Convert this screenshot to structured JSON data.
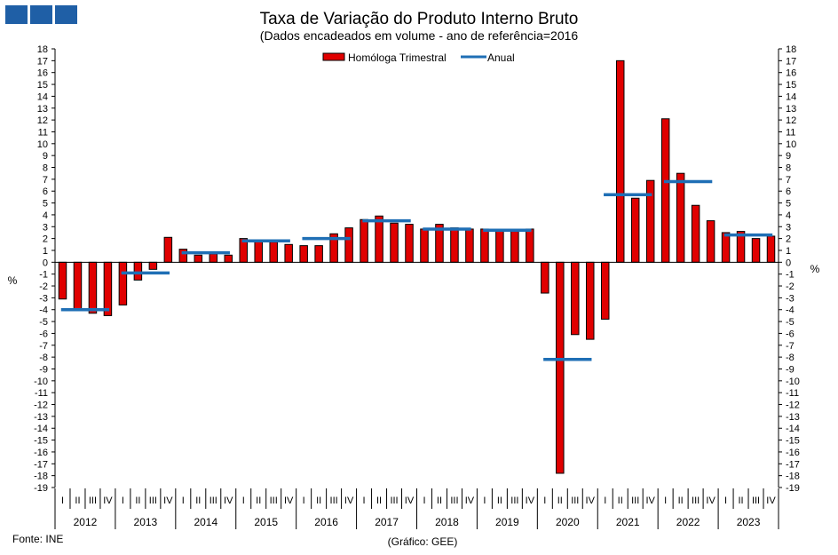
{
  "chart_data": {
    "type": "bar",
    "title": "Taxa de Variação do Produto Interno Bruto",
    "subtitle": "(Dados encadeados em volume  - ano de referência=2016",
    "ylabel_left": "%",
    "ylabel_right": "%",
    "ylim": [
      -19,
      18
    ],
    "yticks": [
      18,
      17,
      16,
      15,
      14,
      13,
      12,
      11,
      10,
      9,
      8,
      7,
      6,
      5,
      4,
      3,
      2,
      1,
      0,
      -1,
      -2,
      -3,
      -4,
      -5,
      -6,
      -7,
      -8,
      -9,
      -10,
      -11,
      -12,
      -13,
      -14,
      -15,
      -16,
      -17,
      -18,
      -19
    ],
    "grid": false,
    "legend_position": "top-center",
    "quarter_labels": [
      "I",
      "II",
      "III",
      "IV"
    ],
    "years": [
      "2012",
      "2013",
      "2014",
      "2015",
      "2016",
      "2017",
      "2018",
      "2019",
      "2020",
      "2021",
      "2022",
      "2023"
    ],
    "series": [
      {
        "name": "Homóloga Trimestral",
        "kind": "bar",
        "color": "#e00000",
        "values": [
          -3.1,
          -4.0,
          -4.3,
          -4.5,
          -3.6,
          -1.5,
          -0.6,
          2.1,
          1.1,
          0.6,
          0.7,
          0.6,
          2.0,
          1.8,
          1.7,
          1.5,
          1.4,
          1.4,
          2.4,
          2.9,
          3.6,
          3.9,
          3.3,
          3.2,
          2.8,
          3.2,
          2.9,
          2.8,
          2.8,
          2.7,
          2.6,
          2.8,
          -2.6,
          -17.8,
          -6.1,
          -6.5,
          -4.8,
          17.0,
          5.4,
          6.9,
          12.1,
          7.5,
          4.8,
          3.5,
          2.5,
          2.6,
          2.0,
          2.2
        ]
      },
      {
        "name": "Anual",
        "kind": "step",
        "color": "#1f6fb5",
        "values": [
          -4.0,
          -0.9,
          0.8,
          1.8,
          2.0,
          3.5,
          2.8,
          2.7,
          -8.2,
          5.7,
          6.8,
          2.3
        ]
      }
    ],
    "source": "Fonte: INE",
    "credit": "(Gráfico: GEE)"
  }
}
